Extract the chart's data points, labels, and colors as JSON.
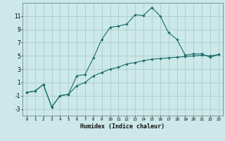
{
  "title": "",
  "xlabel": "Humidex (Indice chaleur)",
  "background_color": "#cce8e8",
  "grid_color": "#aacccc",
  "line_color": "#1a6b6b",
  "line1_x": [
    0,
    1,
    2,
    3,
    4,
    5,
    6,
    7,
    8,
    9,
    10,
    11,
    12,
    13,
    14,
    15,
    16,
    17,
    18,
    19,
    20,
    21,
    22,
    23
  ],
  "line1_y": [
    -0.5,
    -0.3,
    0.7,
    -2.7,
    -1.0,
    -0.8,
    2.0,
    2.2,
    4.7,
    7.5,
    9.3,
    9.5,
    9.8,
    11.2,
    11.1,
    12.3,
    11.0,
    8.5,
    7.5,
    5.1,
    5.3,
    5.3,
    4.8,
    5.2
  ],
  "line2_x": [
    0,
    1,
    2,
    3,
    4,
    5,
    6,
    7,
    8,
    9,
    10,
    11,
    12,
    13,
    14,
    15,
    16,
    17,
    18,
    19,
    20,
    21,
    22,
    23
  ],
  "line2_y": [
    -0.5,
    -0.3,
    0.7,
    -2.7,
    -1.0,
    -0.8,
    0.5,
    1.0,
    2.0,
    2.5,
    3.0,
    3.3,
    3.8,
    4.0,
    4.3,
    4.5,
    4.6,
    4.7,
    4.8,
    4.9,
    5.0,
    5.1,
    5.0,
    5.2
  ],
  "ylim": [
    -4,
    13
  ],
  "xlim": [
    -0.5,
    23.5
  ],
  "yticks": [
    -3,
    -1,
    1,
    3,
    5,
    7,
    9,
    11
  ],
  "xticks": [
    0,
    1,
    2,
    3,
    4,
    5,
    6,
    7,
    8,
    9,
    10,
    11,
    12,
    13,
    14,
    15,
    16,
    17,
    18,
    19,
    20,
    21,
    22,
    23
  ],
  "xtick_labels": [
    "0",
    "1",
    "2",
    "3",
    "4",
    "5",
    "6",
    "7",
    "8",
    "9",
    "10",
    "11",
    "12",
    "13",
    "14",
    "15",
    "16",
    "17",
    "18",
    "19",
    "20",
    "21",
    "22",
    "23"
  ]
}
